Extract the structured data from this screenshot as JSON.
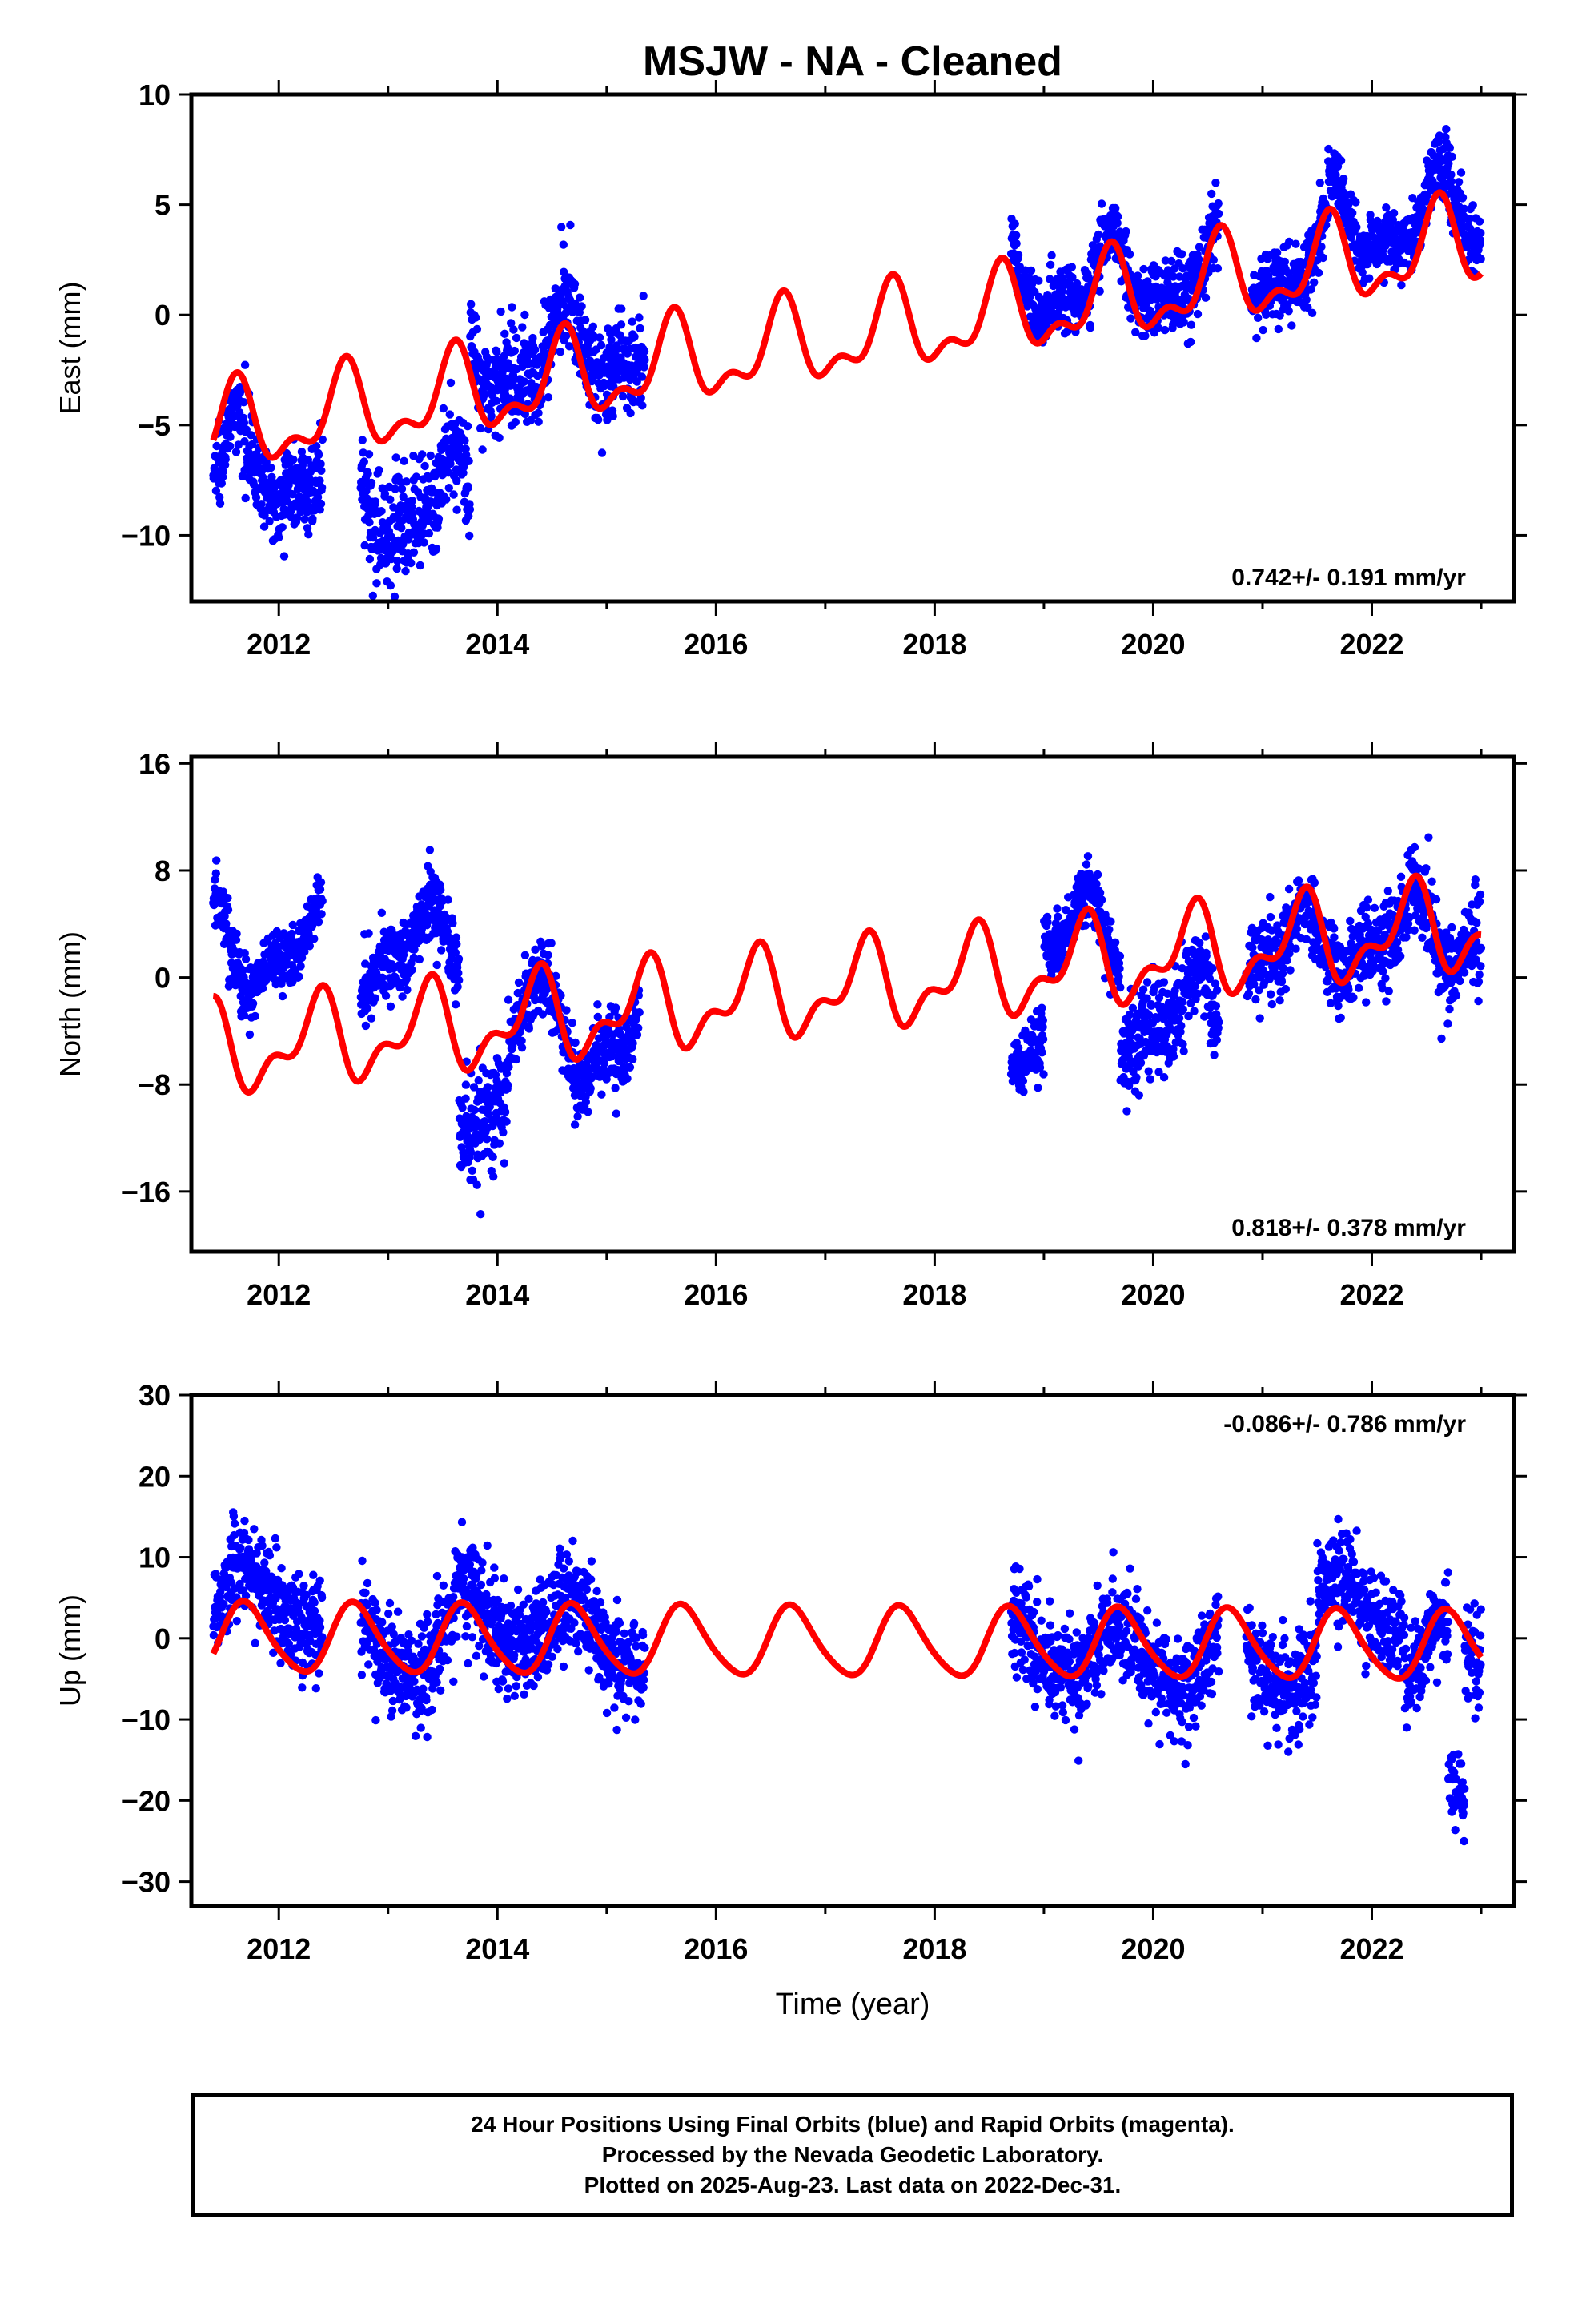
{
  "title": "MSJW  - NA - Cleaned",
  "xlabel": "Time (year)",
  "colors": {
    "data": "#0000ff",
    "model": "#ff0000",
    "frame": "#000000"
  },
  "chart_data": [
    {
      "type": "scatter",
      "component": "East",
      "ylabel": "East (mm)",
      "xlim": [
        2011.2,
        2023.3
      ],
      "ylim": [
        -13,
        10
      ],
      "xticks": [
        2012,
        2014,
        2016,
        2018,
        2020,
        2022
      ],
      "yticks": [
        10,
        5,
        0,
        -5,
        -10
      ],
      "rate_label": "0.742+/- 0.191 mm/yr",
      "rate_position": "bottom-right",
      "model": {
        "rate": 0.742,
        "ref_year": 2017.0,
        "offset": -1.2,
        "annual_amplitude": 1.7,
        "annual_phase_year": 2011.35,
        "semiannual_amplitude": 0.9,
        "semiannual_phase_year": 2011.5
      },
      "data_segments": [
        {
          "start": 2011.4,
          "end": 2012.4,
          "base": -7.0,
          "spread": 1.6
        },
        {
          "start": 2012.75,
          "end": 2013.75,
          "base": -8.5,
          "spread": 2.2
        },
        {
          "start": 2013.75,
          "end": 2014.5,
          "base": -2.0,
          "spread": 2.0
        },
        {
          "start": 2014.5,
          "end": 2015.35,
          "base": -1.5,
          "spread": 2.0
        },
        {
          "start": 2018.7,
          "end": 2019.9,
          "base": 1.5,
          "spread": 1.4
        },
        {
          "start": 2019.9,
          "end": 2020.6,
          "base": 1.8,
          "spread": 1.6
        },
        {
          "start": 2020.9,
          "end": 2021.6,
          "base": 2.2,
          "spread": 1.6
        },
        {
          "start": 2021.6,
          "end": 2022.5,
          "base": 4.2,
          "spread": 1.2
        },
        {
          "start": 2022.5,
          "end": 2023.0,
          "base": 4.5,
          "spread": 1.4
        }
      ]
    },
    {
      "type": "scatter",
      "component": "North",
      "ylabel": "North (mm)",
      "xlim": [
        2011.2,
        2023.3
      ],
      "ylim": [
        -20.5,
        16.5
      ],
      "xticks": [
        2012,
        2014,
        2016,
        2018,
        2020,
        2022
      ],
      "yticks": [
        16,
        8,
        0,
        -8,
        -16
      ],
      "rate_label": "0.818+/- 0.378 mm/yr",
      "rate_position": "bottom-right",
      "model": {
        "rate": 0.818,
        "ref_year": 2017.0,
        "offset": -1.0,
        "annual_amplitude": 2.8,
        "annual_phase_year": 2011.1,
        "semiannual_amplitude": 1.6,
        "semiannual_phase_year": 2011.3
      },
      "data_segments": [
        {
          "start": 2011.4,
          "end": 2012.4,
          "base": 2.0,
          "spread": 2.2
        },
        {
          "start": 2012.75,
          "end": 2013.65,
          "base": 2.0,
          "spread": 2.6
        },
        {
          "start": 2013.65,
          "end": 2014.1,
          "base": -9.0,
          "spread": 4.0
        },
        {
          "start": 2014.1,
          "end": 2014.7,
          "base": -3.5,
          "spread": 2.6
        },
        {
          "start": 2014.7,
          "end": 2015.3,
          "base": -5.0,
          "spread": 2.4
        },
        {
          "start": 2018.7,
          "end": 2019.0,
          "base": -4.0,
          "spread": 2.4
        },
        {
          "start": 2019.0,
          "end": 2019.7,
          "base": 3.0,
          "spread": 2.2
        },
        {
          "start": 2019.7,
          "end": 2020.6,
          "base": -3.0,
          "spread": 3.0
        },
        {
          "start": 2020.85,
          "end": 2021.6,
          "base": 2.0,
          "spread": 2.6
        },
        {
          "start": 2021.6,
          "end": 2022.5,
          "base": 3.0,
          "spread": 3.0
        },
        {
          "start": 2022.5,
          "end": 2023.0,
          "base": 3.5,
          "spread": 3.2
        }
      ]
    },
    {
      "type": "scatter",
      "component": "Up",
      "ylabel": "Up (mm)",
      "xlim": [
        2011.2,
        2023.3
      ],
      "ylim": [
        -33,
        30
      ],
      "xticks": [
        2012,
        2014,
        2016,
        2018,
        2020,
        2022
      ],
      "yticks": [
        30,
        20,
        10,
        0,
        -10,
        -20,
        -30
      ],
      "rate_label": "-0.086+/- 0.786 mm/yr",
      "rate_position": "top-right",
      "model": {
        "rate": -0.086,
        "ref_year": 2017.0,
        "offset": -0.5,
        "annual_amplitude": 4.2,
        "annual_phase_year": 2011.45,
        "semiannual_amplitude": 0.6,
        "semiannual_phase_year": 2011.5
      },
      "data_segments": [
        {
          "start": 2011.4,
          "end": 2012.4,
          "base": 5.0,
          "spread": 5.5
        },
        {
          "start": 2012.75,
          "end": 2013.6,
          "base": -1.0,
          "spread": 5.5
        },
        {
          "start": 2013.6,
          "end": 2014.4,
          "base": 2.5,
          "spread": 6.0
        },
        {
          "start": 2014.4,
          "end": 2015.35,
          "base": 0.5,
          "spread": 6.0
        },
        {
          "start": 2018.7,
          "end": 2019.5,
          "base": -1.0,
          "spread": 5.5
        },
        {
          "start": 2019.5,
          "end": 2020.6,
          "base": -3.0,
          "spread": 5.5
        },
        {
          "start": 2020.85,
          "end": 2021.5,
          "base": -3.0,
          "spread": 5.5
        },
        {
          "start": 2021.5,
          "end": 2022.3,
          "base": 4.0,
          "spread": 5.0
        },
        {
          "start": 2022.3,
          "end": 2022.7,
          "base": -2.0,
          "spread": 5.0
        },
        {
          "start": 2022.7,
          "end": 2022.85,
          "base": -22.0,
          "spread": 4.0
        },
        {
          "start": 2022.85,
          "end": 2023.0,
          "base": -2.0,
          "spread": 6.0
        }
      ]
    }
  ],
  "footer": {
    "line1": "24 Hour Positions Using Final Orbits (blue) and Rapid Orbits (magenta).",
    "line2": "Processed by the Nevada Geodetic Laboratory.",
    "line3": "Plotted on 2025-Aug-23. Last data on 2022-Dec-31."
  }
}
